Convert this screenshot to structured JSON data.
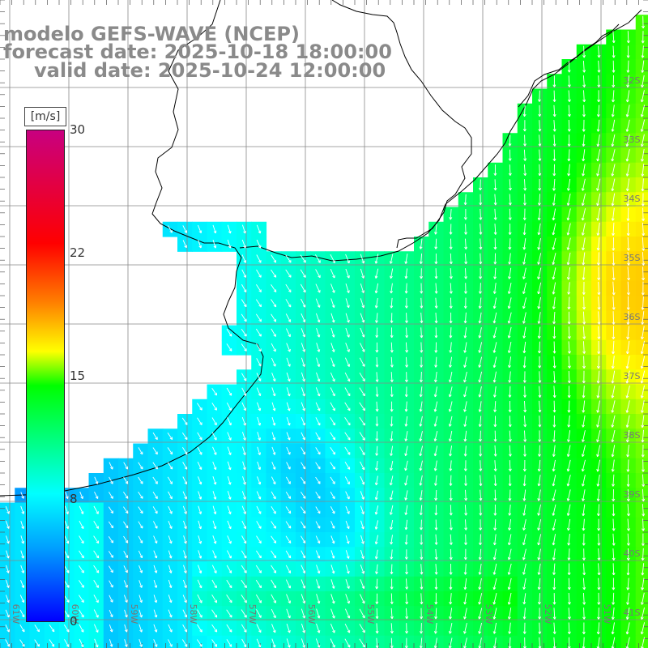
{
  "title": {
    "line1": "modelo GEFS-WAVE (NCEP)",
    "line2": "forecast date: 2025-10-18 18:00:00",
    "line3": "valid date: 2025-10-24 12:00:00"
  },
  "colorbar": {
    "unit": "[m/s]",
    "ticks": [
      "30",
      "22",
      "15",
      "8",
      "0"
    ],
    "min": 0,
    "max": 30
  },
  "map": {
    "lat_labels": [
      "32S",
      "33S",
      "34S",
      "35S",
      "36S",
      "37S",
      "38S",
      "39S",
      "40S",
      "41S"
    ],
    "lon_labels": [
      "61W",
      "60W",
      "59W",
      "58W",
      "57W",
      "56W",
      "55W",
      "54W",
      "53W",
      "52W",
      "51W"
    ],
    "colors": {
      "land": "#ffffff",
      "grid": "#888888",
      "coast": "#000000",
      "arrows": "#ffffff"
    }
  }
}
